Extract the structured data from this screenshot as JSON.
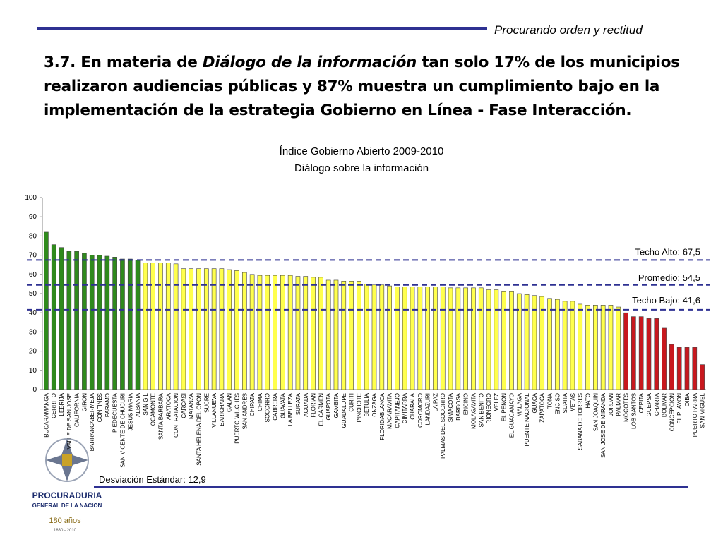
{
  "header": {
    "motto": "Procurando orden y rectitud",
    "heading_start": "3.7. En materia de ",
    "heading_italic": "Diálogo de la información",
    "heading_end": " tan solo 17% de los municipios realizaron audiencias públicas y 87% muestra un cumplimiento bajo en la implementación de la estrategia Gobierno en Línea - Fase Interacción."
  },
  "chart_data": {
    "type": "bar",
    "title": "Índice Gobierno Abierto 2009-2010",
    "subtitle": "Diálogo sobre la información",
    "categories": [
      "BUCARAMANGA",
      "CERRITO",
      "LEBRIJA",
      "VALLE DE SAN JOSE",
      "CALIFORNIA",
      "GIRON",
      "BARRANCABERMEJA",
      "CONFINES",
      "PARAMO",
      "PIEDECUESTA",
      "SAN VICENTE DE CHUCURI",
      "JESUS MARIA",
      "ALBANIA",
      "SAN GIL",
      "OCAMONTE",
      "SANTA BARBARA",
      "ARATOCA",
      "CONTRATACION",
      "CARCASI",
      "MATANZA",
      "SANTA HELENA DEL OPON",
      "SUCRE",
      "VILLANUEVA",
      "BARICHARA",
      "GALAN",
      "PUERTO WILCHES",
      "SAN ANDRES",
      "CHIPATA",
      "CHIMA",
      "SOCORRO",
      "CABRERA",
      "GUAVATA",
      "LA BELLEZA",
      "SURATA",
      "AGUADA",
      "FLORIAN",
      "EL CARMEN",
      "GUAPOTA",
      "GAMBITA",
      "GUADALUPE",
      "CURITI",
      "PINCHOTE",
      "BETULIA",
      "ONZAGA",
      "FLORIDABLANCA",
      "MACARAVITA",
      "CAPITANEJO",
      "CIMITARRA",
      "CHARALA",
      "COROMORO",
      "LANDAZURI",
      "LA PAZ",
      "PALMAS DEL SOCORRO",
      "SIMACOTA",
      "BARBOSA",
      "ENCINO",
      "MOLAGAVITA",
      "SAN BENITO",
      "RIONEGRO",
      "VELEZ",
      "EL PEÑON",
      "EL GUACAMAYO",
      "MALAGA",
      "PUENTE NACIONAL",
      "GUACA",
      "ZAPATOCA",
      "TONA",
      "ENCISO",
      "SUAITA",
      "VETAS",
      "SABANA DE TORRES",
      "HATO",
      "SAN JOAQUIN",
      "SAN JOSE DE MIRANDA",
      "JORDAN",
      "PALMAR",
      "MOGOTES",
      "LOS SANTOS",
      "CEPITA",
      "GUEPSA",
      "CHARTA",
      "BOLIVAR",
      "CONCEPCION",
      "EL PLAYON",
      "OIBA",
      "PUERTO PARRA",
      "SAN MIGUEL"
    ],
    "values": [
      82,
      75.5,
      74,
      72,
      72,
      71,
      70,
      70,
      69.5,
      69,
      68,
      68,
      67.5,
      66,
      66,
      66,
      66,
      65.5,
      63,
      63,
      63,
      63,
      63,
      63,
      62.5,
      62,
      61,
      60,
      59.5,
      59.5,
      59.5,
      59.5,
      59.5,
      59,
      59,
      58.5,
      58.5,
      57,
      57,
      56.5,
      56.5,
      56.5,
      55,
      54.5,
      54.5,
      54,
      53.5,
      53.5,
      53.5,
      53.5,
      53.5,
      53.5,
      53.5,
      53,
      53,
      53,
      53,
      53,
      52,
      52,
      51,
      51,
      50,
      49.5,
      49,
      48.5,
      47.5,
      47,
      46,
      46,
      44.5,
      44,
      44,
      44,
      44,
      43,
      40,
      38,
      38,
      37,
      37,
      32,
      23.5,
      22,
      22,
      22,
      13
    ],
    "ylim": [
      0,
      100
    ],
    "yticks": [
      0,
      10,
      20,
      30,
      40,
      50,
      60,
      70,
      80,
      90,
      100
    ],
    "color_high": "#2f8a1c",
    "color_mid": "#ffff4d",
    "color_low": "#c8181e",
    "reference_lines": [
      {
        "label": "Techo Alto: 67,5",
        "value": 67.5
      },
      {
        "label": "Promedio: 54,5",
        "value": 54.5
      },
      {
        "label": "Techo Bajo: 41,6",
        "value": 41.6
      }
    ],
    "footnote": "Desviación Estándar: 12,9"
  },
  "logo": {
    "line1": "PROCURADURIA",
    "line2": "GENERAL DE LA NACION",
    "years": "180 años",
    "span": "1830 - 2010"
  }
}
